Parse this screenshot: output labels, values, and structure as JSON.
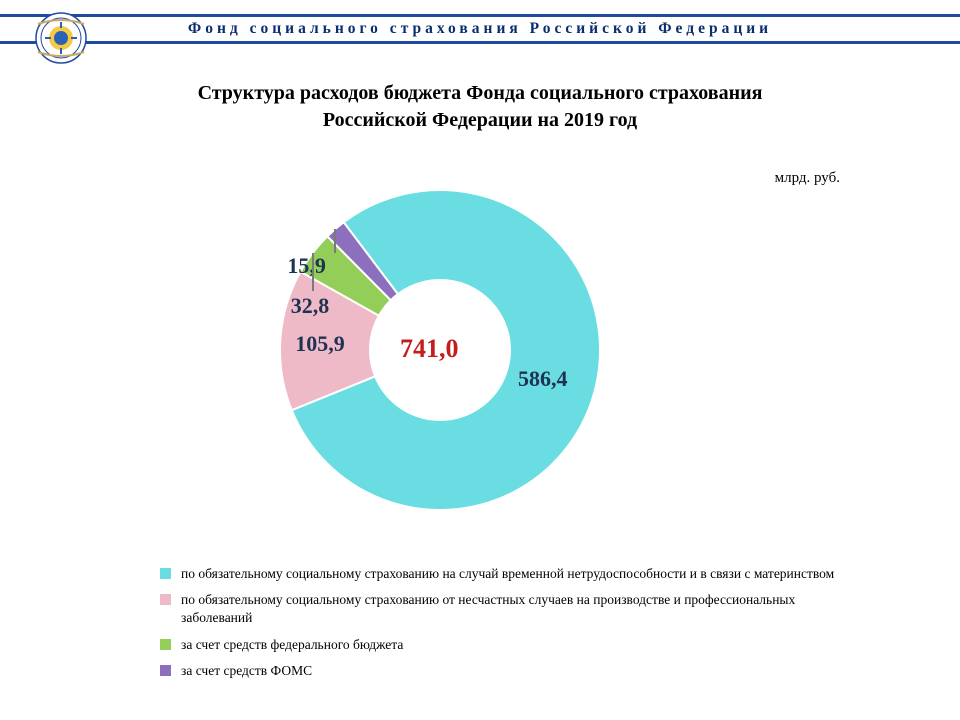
{
  "header": {
    "org_title": "Фонд социального страхования Российской Федерации",
    "rule_color": "#1f4aa1",
    "title_color": "#0a2d6e"
  },
  "title_line1": "Структура расходов бюджета Фонда социального страхования",
  "title_line2": "Российской Федерации на 2019 год",
  "unit_label": "млрд. руб.",
  "chart": {
    "type": "donut",
    "center_value": "741,0",
    "center_color": "#c31e1e",
    "background_color": "#ffffff",
    "inner_radius": 70,
    "outer_radius": 160,
    "slices": [
      {
        "value": 586.4,
        "label": "586,4",
        "color": "#69dde2",
        "edge": "#ffffff",
        "lbl_color": "#1e3252"
      },
      {
        "value": 105.9,
        "label": "105,9",
        "color": "#efbac7",
        "edge": "#ffffff",
        "lbl_color": "#1e3252"
      },
      {
        "value": 32.8,
        "label": "32,8",
        "color": "#93cf58",
        "edge": "#ffffff",
        "lbl_color": "#1e3252"
      },
      {
        "value": 15.9,
        "label": "15,9",
        "color": "#8d70bd",
        "edge": "#ffffff",
        "lbl_color": "#1e3252"
      }
    ],
    "leader_color": "#7a7a7a"
  },
  "legend": {
    "items": [
      {
        "color": "#69dde2",
        "text": "по обязательному социальному страхованию на случай временной нетрудоспособности и в связи с материнством"
      },
      {
        "color": "#efbac7",
        "text": "по обязательному социальному страхованию от несчастных случаев на производстве и профессиональных заболеваний"
      },
      {
        "color": "#93cf58",
        "text": "за счет средств федерального бюджета"
      },
      {
        "color": "#8d70bd",
        "text": "за счет средств ФОМС"
      }
    ]
  }
}
